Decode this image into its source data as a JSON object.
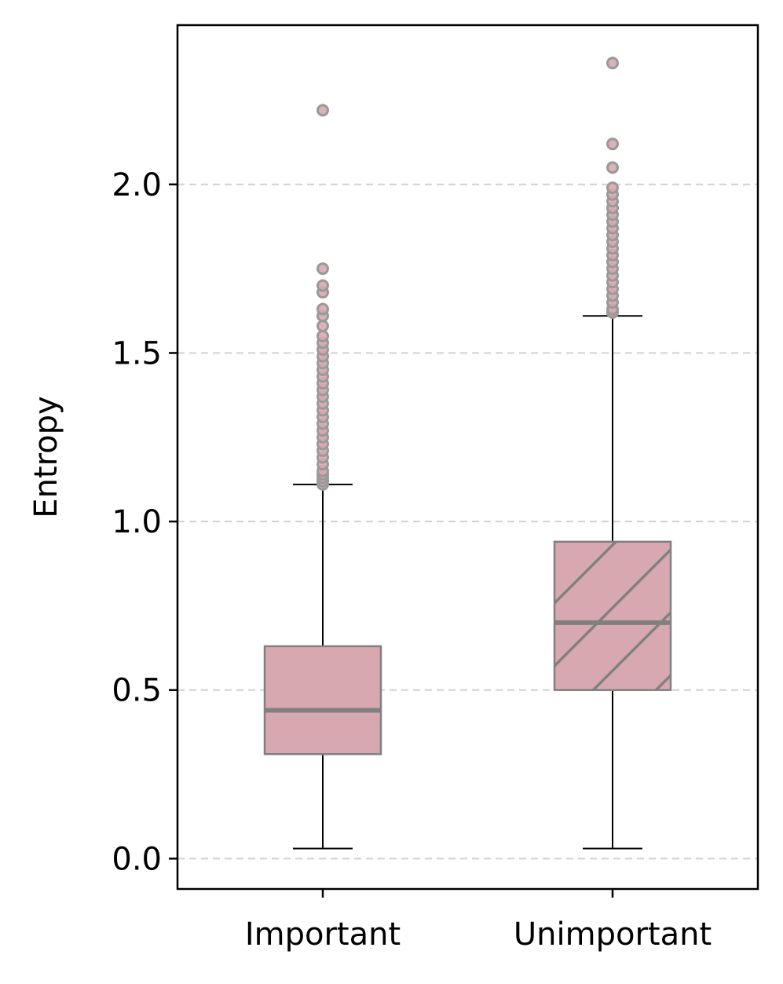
{
  "chart_data": {
    "type": "boxplot",
    "title": "",
    "xlabel": "",
    "ylabel": "Entropy",
    "ylim": [
      -0.09,
      2.47
    ],
    "yticks": [
      0.0,
      0.5,
      1.0,
      1.5,
      2.0
    ],
    "ytick_labels": [
      "0.0",
      "0.5",
      "1.0",
      "1.5",
      "2.0"
    ],
    "grid": "y-dashed",
    "colors": {
      "box_fill": "#d8a8b0",
      "box_edge": "#808080",
      "median": "#808080",
      "whisker": "#000000",
      "grid": "#d3d3d3",
      "outlier_fill": "#d8a8b0",
      "outlier_edge": "#999999"
    },
    "categories": [
      "Important",
      "Unimportant"
    ],
    "boxes": [
      {
        "label": "Important",
        "whisker_low": 0.03,
        "q1": 0.31,
        "median": 0.44,
        "q3": 0.63,
        "whisker_high": 1.11,
        "hatch": "none",
        "outliers": [
          1.11,
          1.12,
          1.13,
          1.14,
          1.15,
          1.17,
          1.19,
          1.21,
          1.23,
          1.25,
          1.27,
          1.29,
          1.31,
          1.33,
          1.35,
          1.37,
          1.39,
          1.41,
          1.43,
          1.45,
          1.47,
          1.49,
          1.51,
          1.53,
          1.55,
          1.58,
          1.61,
          1.63,
          1.68,
          1.7,
          1.75,
          2.22
        ]
      },
      {
        "label": "Unimportant",
        "whisker_low": 0.03,
        "q1": 0.5,
        "median": 0.7,
        "q3": 0.94,
        "whisker_high": 1.61,
        "hatch": "diagonal",
        "outliers": [
          1.62,
          1.63,
          1.65,
          1.67,
          1.69,
          1.71,
          1.73,
          1.75,
          1.77,
          1.79,
          1.81,
          1.83,
          1.85,
          1.87,
          1.89,
          1.91,
          1.93,
          1.95,
          1.97,
          1.99,
          2.05,
          2.12,
          2.36
        ]
      }
    ]
  }
}
